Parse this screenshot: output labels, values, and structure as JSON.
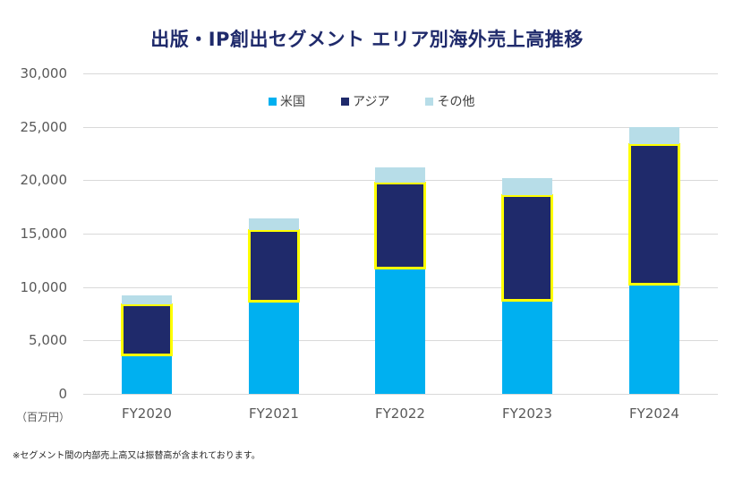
{
  "title": "出版・IP創出セグメント エリア別海外売上高推移",
  "unit_label": "（百万円）",
  "footnote": "※セグメント間の内部売上高又は振替高が含まれております。",
  "colors": {
    "us": "#00b0f0",
    "asia": "#1f2a6b",
    "other": "#b7dde8",
    "highlight": "#ffff00",
    "title": "#1f2a6b"
  },
  "legend": [
    {
      "label": "米国",
      "color": "#00b0f0"
    },
    {
      "label": "アジア",
      "color": "#1f2a6b"
    },
    {
      "label": "その他",
      "color": "#b7dde8"
    }
  ],
  "y_ticks": [
    "30,000",
    "25,000",
    "20,000",
    "15,000",
    "10,000",
    "5,000",
    "0"
  ],
  "chart_data": {
    "type": "bar",
    "stacked": true,
    "title": "出版・IP創出セグメント エリア別海外売上高推移",
    "xlabel": "",
    "ylabel": "（百万円）",
    "ylim": [
      0,
      30000
    ],
    "yticks": [
      0,
      5000,
      10000,
      15000,
      20000,
      25000,
      30000
    ],
    "grid": true,
    "legend_position": "top",
    "categories": [
      "FY2020",
      "FY2021",
      "FY2022",
      "FY2023",
      "FY2024"
    ],
    "series": [
      {
        "name": "米国",
        "values": [
          3600,
          8600,
          11700,
          8700,
          10200
        ]
      },
      {
        "name": "アジア",
        "values": [
          4800,
          6700,
          8100,
          9900,
          13200
        ]
      },
      {
        "name": "その他",
        "values": [
          800,
          1100,
          1400,
          1600,
          1600
        ]
      }
    ],
    "annotations": [
      "アジア segment highlighted with yellow outline in every year"
    ]
  }
}
